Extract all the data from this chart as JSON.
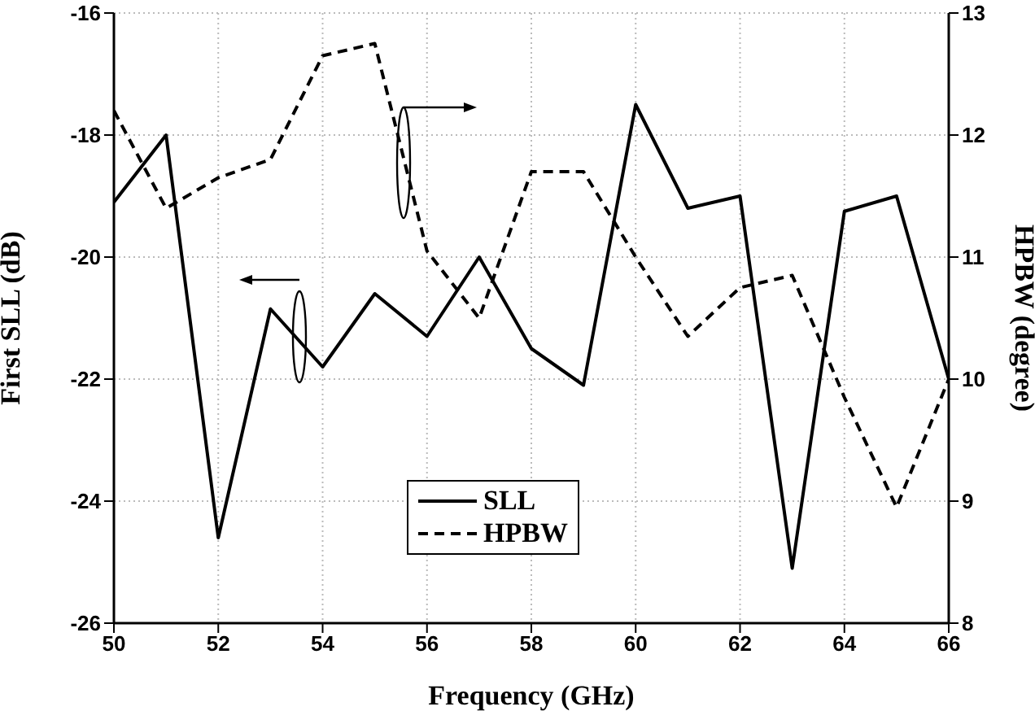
{
  "chart_data": {
    "type": "line",
    "xlabel": "Frequency (GHz)",
    "ylabel": "First SLL (dB)",
    "y2label": "HPBW (degree)",
    "x": [
      50,
      51,
      52,
      53,
      54,
      55,
      56,
      57,
      58,
      59,
      60,
      61,
      62,
      63,
      64,
      65,
      66
    ],
    "series": [
      {
        "name": "SLL",
        "color": "#000000",
        "line_style": "solid",
        "values": [
          -19.1,
          -18.0,
          -24.6,
          -20.85,
          -21.8,
          -20.6,
          -21.3,
          -20.0,
          -21.5,
          -22.1,
          -17.5,
          -19.2,
          -19.0,
          -25.1,
          -19.25,
          -19.0,
          -22.0
        ]
      },
      {
        "name": "HPBW",
        "color": "#000000",
        "line_style": "dashed",
        "axis": "y2",
        "values": [
          12.2,
          11.4,
          11.65,
          11.8,
          12.65,
          12.75,
          11.05,
          10.5,
          11.7,
          11.7,
          11.0,
          10.35,
          10.75,
          10.85,
          9.85,
          8.95,
          10.0
        ]
      }
    ],
    "xlim": [
      50,
      66
    ],
    "xticks": [
      50,
      52,
      54,
      56,
      58,
      60,
      62,
      64,
      66
    ],
    "ylim": [
      -26,
      -16
    ],
    "yticks": [
      -26,
      -24,
      -22,
      -20,
      -18,
      -16
    ],
    "y2lim": [
      8,
      13
    ],
    "y2ticks": [
      8,
      9,
      10,
      11,
      12,
      13
    ],
    "grid": true,
    "legend": "bottom",
    "marker": "none"
  }
}
